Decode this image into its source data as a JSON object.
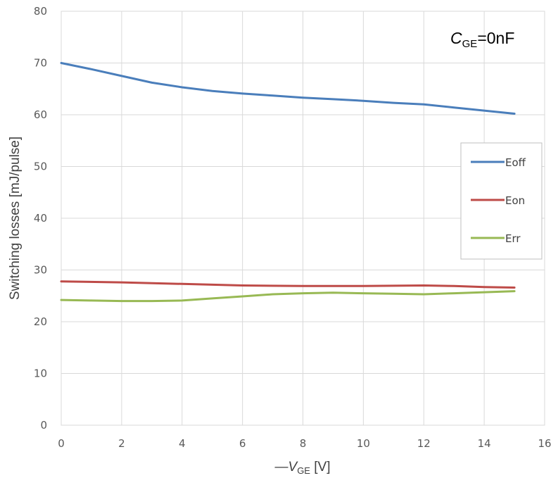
{
  "chart_data": {
    "type": "line",
    "annotation": {
      "prefix": "C",
      "sub": "GE",
      "suffix": "=0nF"
    },
    "xlabel": {
      "prefix": "—V",
      "sub": "GE",
      "suffix": " [V]"
    },
    "ylabel": "Switching losses  [mJ/pulse]",
    "xlim": [
      0,
      16
    ],
    "ylim": [
      0,
      80
    ],
    "xticks": [
      0,
      2,
      4,
      6,
      8,
      10,
      12,
      14,
      16
    ],
    "yticks": [
      0,
      10,
      20,
      30,
      40,
      50,
      60,
      70,
      80
    ],
    "grid": true,
    "legend_position": "right",
    "series": [
      {
        "name": "Eoff",
        "color": "#4a7ebb",
        "x": [
          0,
          1,
          2,
          3,
          4,
          5,
          6,
          7,
          8,
          9,
          10,
          11,
          12,
          13,
          14,
          15
        ],
        "y": [
          70.0,
          68.8,
          67.5,
          66.2,
          65.3,
          64.6,
          64.1,
          63.7,
          63.3,
          63.0,
          62.7,
          62.3,
          62.0,
          61.4,
          60.8,
          60.2
        ]
      },
      {
        "name": "Eon",
        "color": "#be4b48",
        "x": [
          0,
          2,
          4,
          6,
          8,
          10,
          12,
          13,
          14,
          15
        ],
        "y": [
          27.8,
          27.6,
          27.3,
          27.0,
          26.9,
          26.9,
          27.0,
          26.9,
          26.7,
          26.6
        ]
      },
      {
        "name": "Err",
        "color": "#98b954",
        "x": [
          0,
          1,
          2,
          3,
          4,
          5,
          6,
          7,
          8,
          9,
          10,
          11,
          12,
          13,
          14,
          15
        ],
        "y": [
          24.2,
          24.1,
          24.0,
          24.0,
          24.1,
          24.5,
          24.9,
          25.3,
          25.5,
          25.6,
          25.5,
          25.4,
          25.3,
          25.5,
          25.7,
          25.9
        ]
      }
    ]
  }
}
